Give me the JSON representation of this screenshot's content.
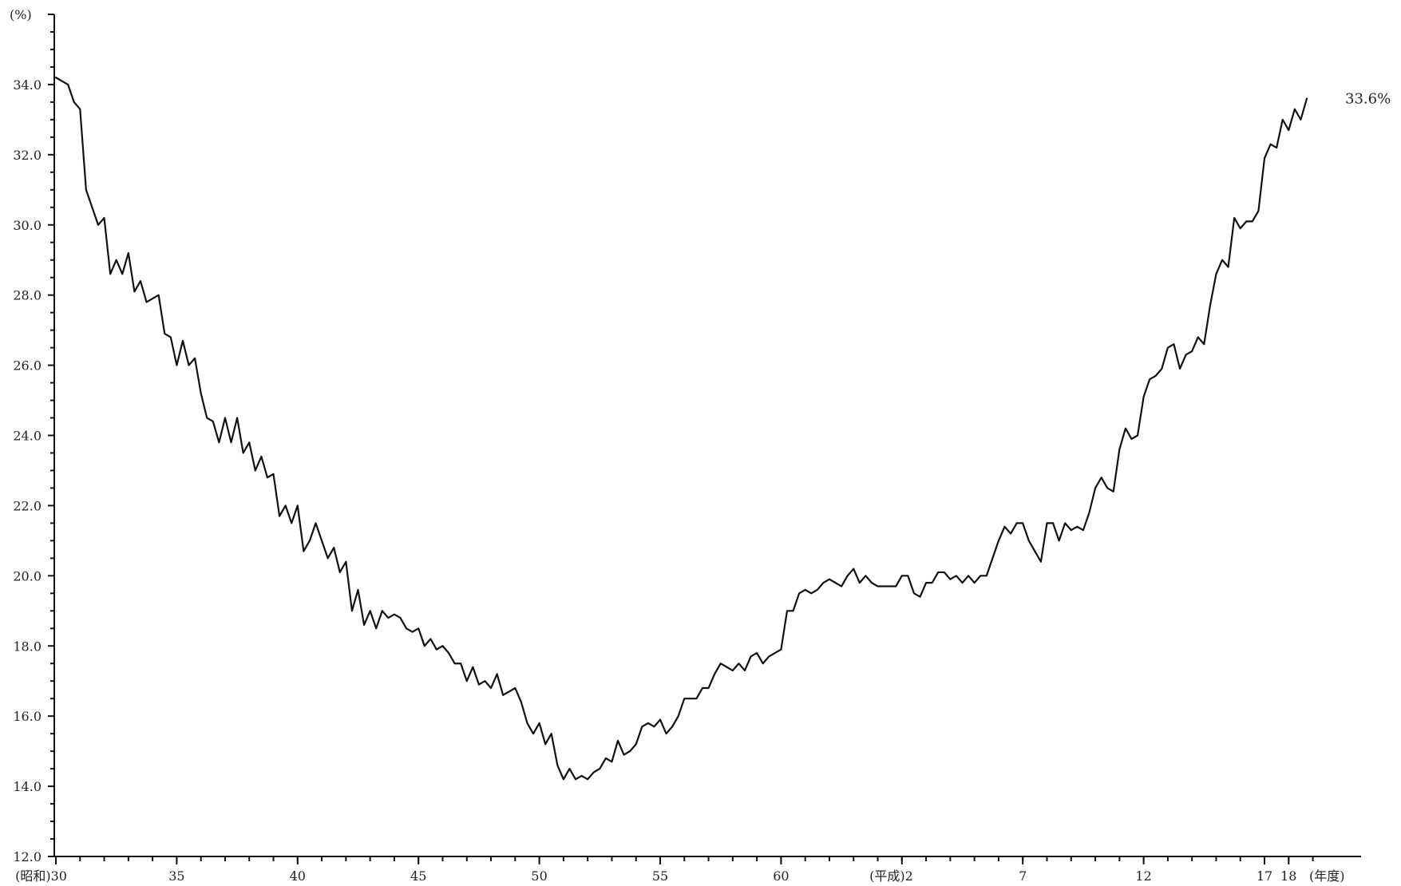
{
  "chart_data": {
    "type": "line",
    "title": "",
    "ylabel": "(%)",
    "xlabel": "(年度)",
    "ylim": [
      12.0,
      36.0
    ],
    "y_ticks": [
      "12.0",
      "14.0",
      "16.0",
      "18.0",
      "20.0",
      "22.0",
      "24.0",
      "26.0",
      "28.0",
      "30.0",
      "32.0",
      "34.0"
    ],
    "x_ticks": [
      "(昭和)30",
      "35",
      "40",
      "45",
      "50",
      "55",
      "60",
      "(平成)2",
      "7",
      "12",
      "17",
      "18"
    ],
    "grid": false,
    "legend": "none",
    "line_color": "#111111",
    "end_label": "33.6%",
    "series": [
      {
        "values": [
          34.2,
          34.1,
          34.0,
          33.5,
          33.3,
          31.0,
          30.5,
          30.0,
          30.2,
          28.6,
          29.0,
          28.6,
          29.2,
          28.1,
          28.4,
          27.8,
          27.9,
          28.0,
          26.9,
          26.8,
          26.0,
          26.7,
          26.0,
          26.2,
          25.2,
          24.5,
          24.4,
          23.8,
          24.5,
          23.8,
          24.5,
          23.5,
          23.8,
          23.0,
          23.4,
          22.8,
          22.9,
          21.7,
          22.0,
          21.5,
          22.0,
          20.7,
          21.0,
          21.5,
          21.0,
          20.5,
          20.8,
          20.1,
          20.4,
          19.0,
          19.6,
          18.6,
          19.0,
          18.5,
          19.0,
          18.8,
          18.9,
          18.8,
          18.5,
          18.4,
          18.5,
          18.0,
          18.2,
          17.9,
          18.0,
          17.8,
          17.5,
          17.5,
          17.0,
          17.4,
          16.9,
          17.0,
          16.8,
          17.2,
          16.6,
          16.7,
          16.8,
          16.4,
          15.8,
          15.5,
          15.8,
          15.2,
          15.5,
          14.6,
          14.2,
          14.5,
          14.2,
          14.3,
          14.2,
          14.4,
          14.5,
          14.8,
          14.7,
          15.3,
          14.9,
          15.0,
          15.2,
          15.7,
          15.8,
          15.7,
          15.9,
          15.5,
          15.7,
          16.0,
          16.5,
          16.5,
          16.5,
          16.8,
          16.8,
          17.2,
          17.5,
          17.4,
          17.3,
          17.5,
          17.3,
          17.7,
          17.8,
          17.5,
          17.7,
          17.8,
          17.9,
          19.0,
          19.0,
          19.5,
          19.6,
          19.5,
          19.6,
          19.8,
          19.9,
          19.8,
          19.7,
          20.0,
          20.2,
          19.8,
          20.0,
          19.8,
          19.7,
          19.7,
          19.7,
          19.7,
          20.0,
          20.0,
          19.5,
          19.4,
          19.8,
          19.8,
          20.1,
          20.1,
          19.9,
          20.0,
          19.8,
          20.0,
          19.8,
          20.0,
          20.0,
          20.5,
          21.0,
          21.4,
          21.2,
          21.5,
          21.5,
          21.0,
          20.7,
          20.4,
          21.5,
          21.5,
          21.0,
          21.5,
          21.3,
          21.4,
          21.3,
          21.8,
          22.5,
          22.8,
          22.5,
          22.4,
          23.6,
          24.2,
          23.9,
          24.0,
          25.1,
          25.6,
          25.7,
          25.9,
          26.5,
          26.6,
          25.9,
          26.3,
          26.4,
          26.8,
          26.6,
          27.7,
          28.6,
          29.0,
          28.8,
          30.2,
          29.9,
          30.1,
          30.1,
          30.4,
          31.9,
          32.3,
          32.2,
          33.0,
          32.7,
          33.3,
          33.0,
          33.6
        ]
      }
    ]
  }
}
